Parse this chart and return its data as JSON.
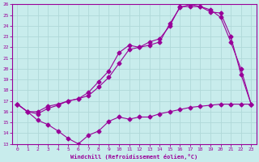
{
  "title": "",
  "xlabel": "Windchill (Refroidissement éolien,°C)",
  "xlim": [
    -0.5,
    23.5
  ],
  "ylim": [
    13,
    26
  ],
  "yticks": [
    13,
    14,
    15,
    16,
    17,
    18,
    19,
    20,
    21,
    22,
    23,
    24,
    25,
    26
  ],
  "xticks": [
    0,
    1,
    2,
    3,
    4,
    5,
    6,
    7,
    8,
    9,
    10,
    11,
    12,
    13,
    14,
    15,
    16,
    17,
    18,
    19,
    20,
    21,
    22,
    23
  ],
  "background_color": "#c8ecec",
  "line_color": "#990099",
  "grid_color": "#b0d8d8",
  "curve1_x": [
    0,
    1,
    2,
    3,
    4,
    5,
    6,
    7,
    8,
    9,
    10,
    11,
    12,
    13,
    14,
    15,
    16,
    17,
    18,
    19,
    20,
    21,
    22,
    23
  ],
  "curve1_y": [
    16.7,
    16.0,
    15.2,
    14.8,
    14.2,
    13.5,
    13.0,
    13.8,
    14.2,
    15.1,
    15.5,
    15.3,
    15.5,
    15.5,
    15.8,
    16.0,
    16.2,
    16.4,
    16.5,
    16.6,
    16.7,
    16.7,
    16.7,
    16.7
  ],
  "curve2_x": [
    0,
    1,
    2,
    3,
    4,
    5,
    6,
    7,
    8,
    9,
    10,
    11,
    12,
    13,
    14,
    15,
    16,
    17,
    18,
    19,
    20,
    21,
    22,
    23
  ],
  "curve2_y": [
    16.7,
    16.0,
    15.8,
    16.3,
    16.6,
    17.0,
    17.2,
    17.5,
    18.3,
    19.2,
    20.5,
    21.8,
    22.0,
    22.2,
    22.5,
    24.2,
    25.7,
    26.0,
    25.8,
    25.5,
    24.8,
    22.5,
    20.0,
    16.7
  ],
  "curve3_x": [
    0,
    1,
    2,
    3,
    4,
    5,
    6,
    7,
    8,
    9,
    10,
    11,
    12,
    13,
    14,
    15,
    16,
    17,
    18,
    19,
    20,
    21,
    22,
    23
  ],
  "curve3_y": [
    16.7,
    16.0,
    16.0,
    16.5,
    16.7,
    17.0,
    17.2,
    17.8,
    18.8,
    19.8,
    21.5,
    22.2,
    22.0,
    22.5,
    22.8,
    24.0,
    25.8,
    25.8,
    25.8,
    25.3,
    25.2,
    23.0,
    19.5,
    16.7
  ]
}
